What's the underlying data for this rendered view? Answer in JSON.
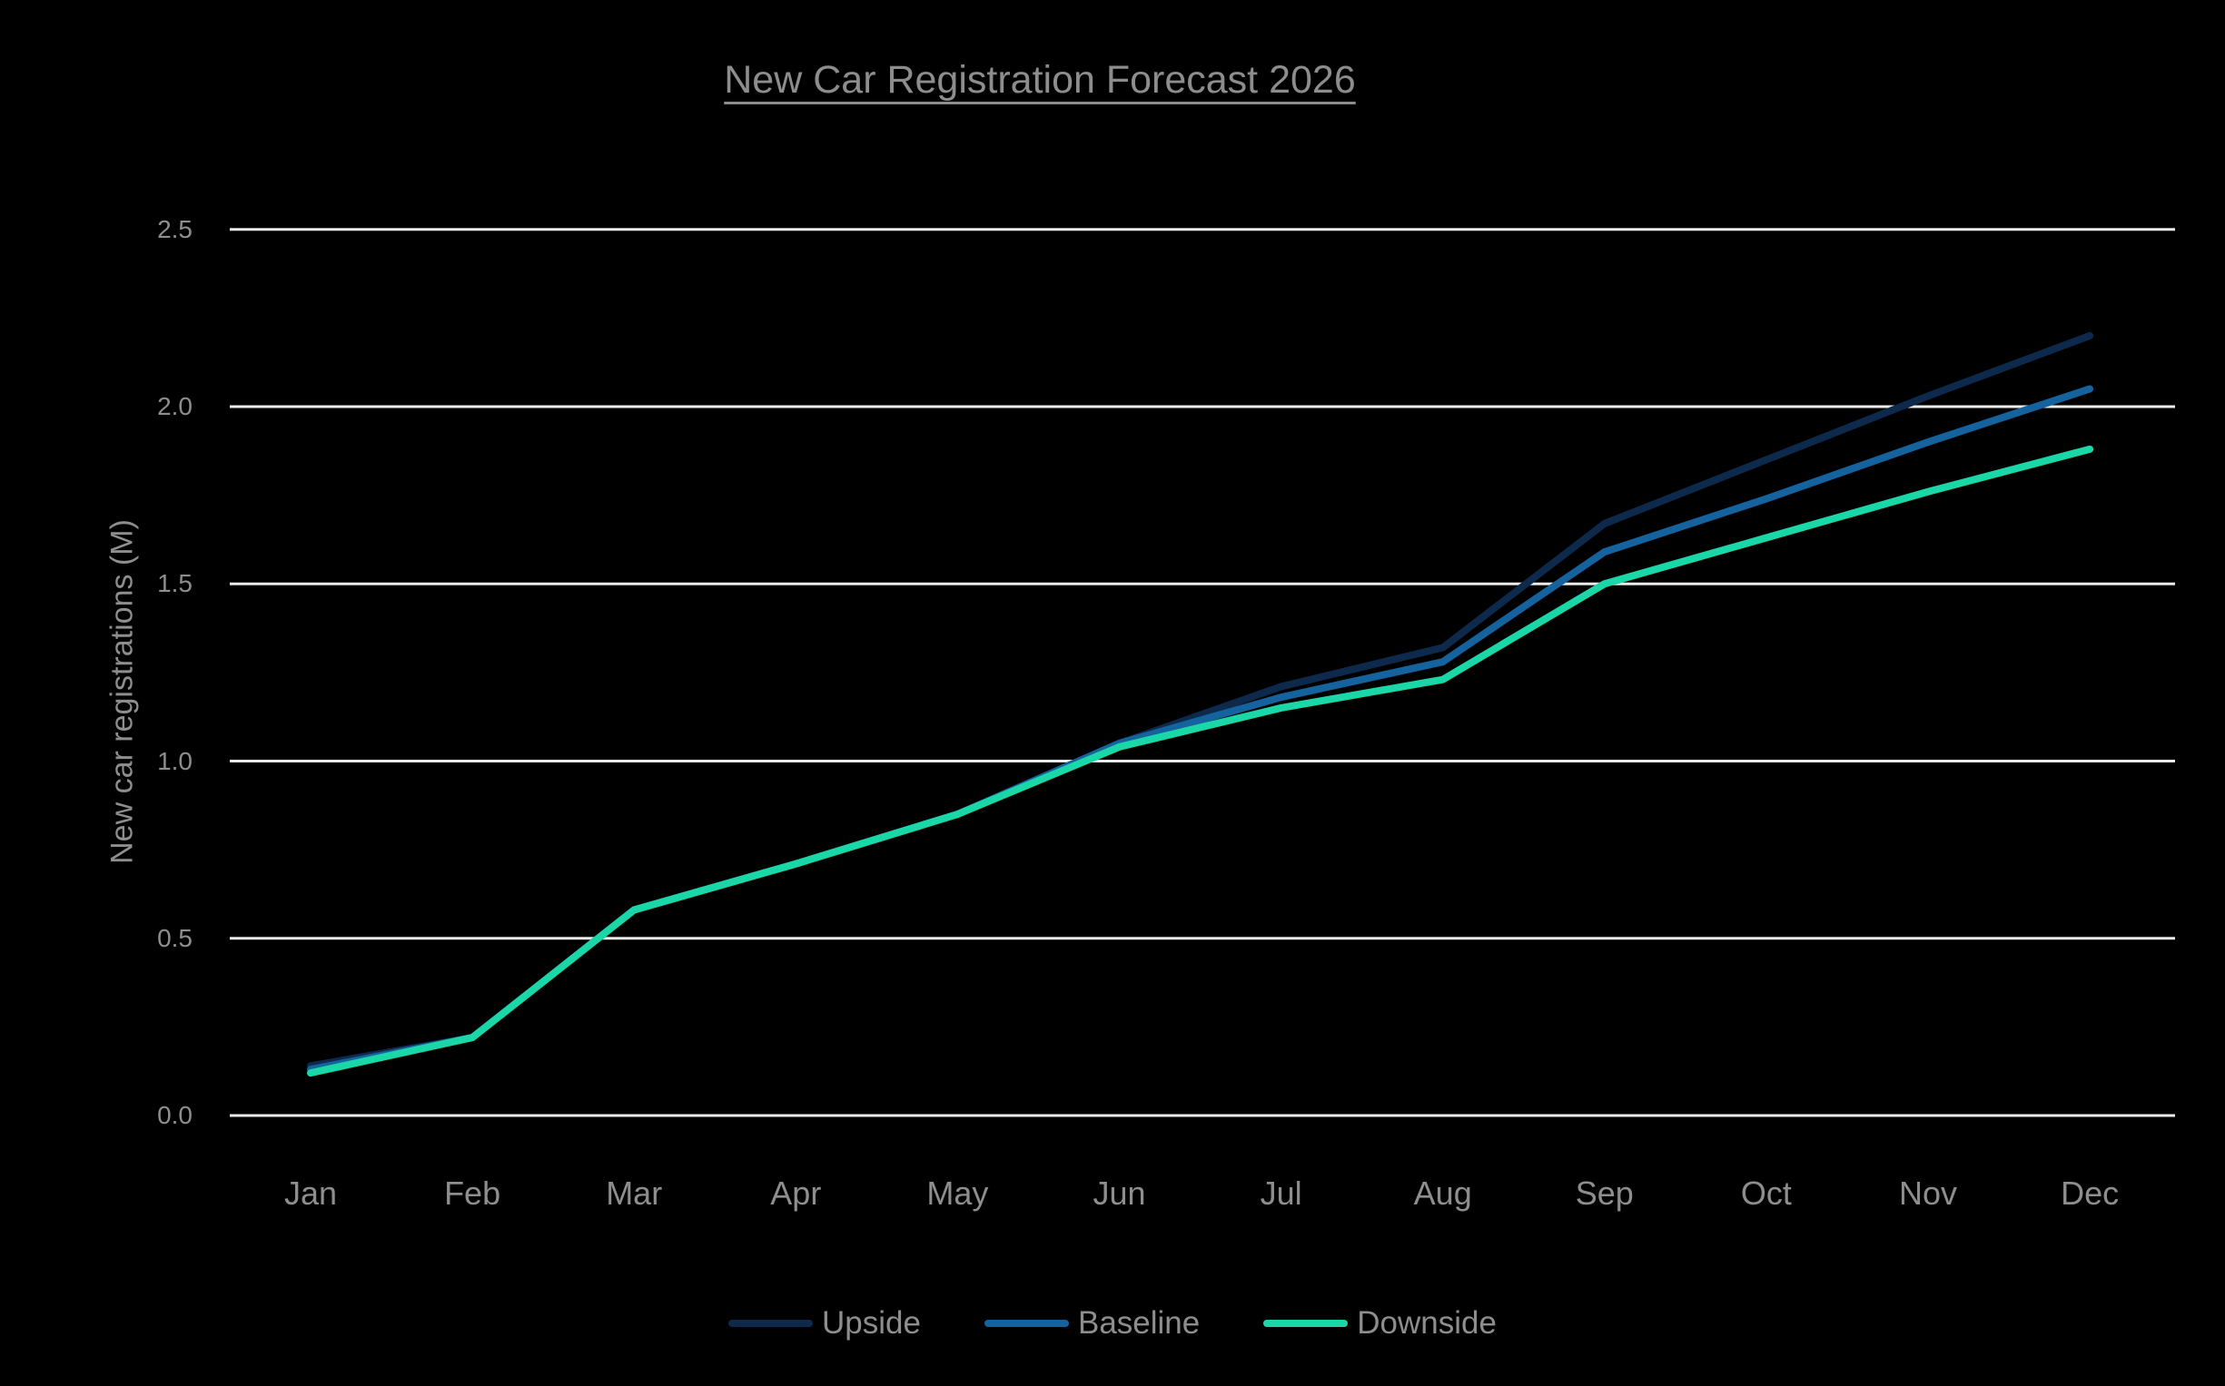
{
  "chart_data": {
    "type": "line",
    "title": "New Car Registration Forecast 2026",
    "xlabel": "",
    "ylabel": "New car registrations (M)",
    "categories": [
      "Jan",
      "Feb",
      "Mar",
      "Apr",
      "May",
      "Jun",
      "Jul",
      "Aug",
      "Sep",
      "Oct",
      "Nov",
      "Dec"
    ],
    "series": [
      {
        "name": "Upside",
        "color": "#0d2a4d",
        "values": [
          0.14,
          0.22,
          0.58,
          0.71,
          0.85,
          1.05,
          1.21,
          1.32,
          1.67,
          1.85,
          2.03,
          2.2
        ]
      },
      {
        "name": "Baseline",
        "color": "#14639e",
        "values": [
          0.13,
          0.22,
          0.58,
          0.71,
          0.85,
          1.05,
          1.18,
          1.28,
          1.59,
          1.74,
          1.9,
          2.05
        ]
      },
      {
        "name": "Downside",
        "color": "#19d7a6",
        "values": [
          0.12,
          0.22,
          0.58,
          0.71,
          0.85,
          1.04,
          1.15,
          1.23,
          1.5,
          1.63,
          1.76,
          1.88
        ]
      }
    ],
    "ylim": [
      0,
      2.5
    ],
    "yticks": [
      {
        "label": "0.0",
        "value": 0.0
      },
      {
        "label": "0.5",
        "value": 0.5
      },
      {
        "label": "1.0",
        "value": 1.0
      },
      {
        "label": "1.5",
        "value": 1.5
      },
      {
        "label": "2.0",
        "value": 2.0
      },
      {
        "label": "2.5",
        "value": 2.5
      }
    ],
    "grid": "horizontal",
    "legend_position": "bottom",
    "colors": {
      "background": "#000000",
      "gridline": "#ebebe9",
      "text": "#8e8e8e",
      "title_text": "#8d8d8d"
    }
  }
}
